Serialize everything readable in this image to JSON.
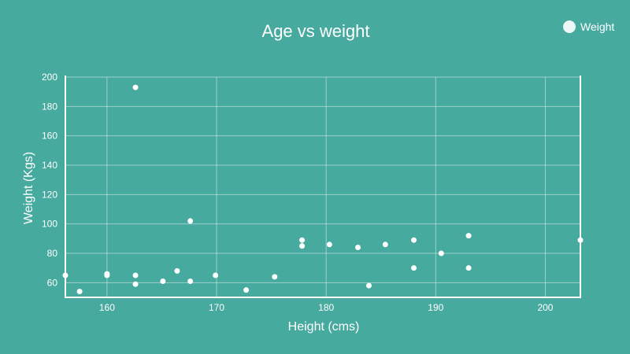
{
  "colors": {
    "background": "#47aa9f",
    "foreground": "#ffffff"
  },
  "chart_data": {
    "type": "scatter",
    "title": "Age vs weight",
    "xlabel": "Height (cms)",
    "ylabel": "Weight (Kgs)",
    "xlim": [
      156.2,
      203.2
    ],
    "ylim": [
      50,
      200
    ],
    "x_ticks": [
      160,
      170,
      180,
      190,
      200
    ],
    "y_ticks": [
      60,
      80,
      100,
      120,
      140,
      160,
      180,
      200
    ],
    "grid": true,
    "legend": "top-right",
    "series": [
      {
        "name": "Weight",
        "points": [
          [
            156.2,
            65
          ],
          [
            157.5,
            54
          ],
          [
            160,
            65
          ],
          [
            160,
            66
          ],
          [
            162.6,
            193
          ],
          [
            162.6,
            65
          ],
          [
            162.6,
            59
          ],
          [
            165.1,
            61
          ],
          [
            166.4,
            68
          ],
          [
            167.6,
            102
          ],
          [
            167.6,
            61
          ],
          [
            169.9,
            65
          ],
          [
            172.7,
            55
          ],
          [
            175.3,
            64
          ],
          [
            177.8,
            89
          ],
          [
            177.8,
            85
          ],
          [
            180.3,
            86
          ],
          [
            182.9,
            84
          ],
          [
            183.9,
            58
          ],
          [
            185.4,
            86
          ],
          [
            188,
            89
          ],
          [
            188,
            70
          ],
          [
            190.5,
            80
          ],
          [
            193,
            92
          ],
          [
            193,
            70
          ],
          [
            203.2,
            89
          ]
        ]
      }
    ]
  }
}
